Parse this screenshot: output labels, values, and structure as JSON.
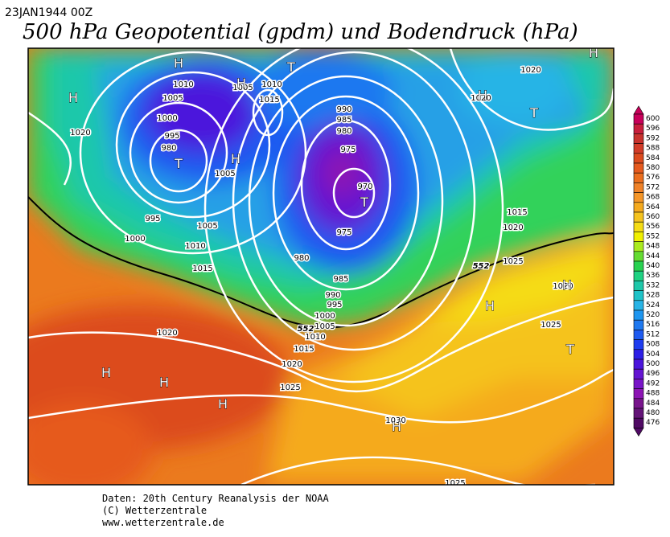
{
  "header": {
    "date": "23JAN1944 00Z",
    "title": "500 hPa Geopotential (gpdm) und Bodendruck (hPa)"
  },
  "map": {
    "contour_labels": [
      "1010",
      "1005",
      "1010",
      "1015",
      "1005",
      "1000",
      "995",
      "980",
      "1020",
      "1005",
      "995",
      "1005",
      "1000",
      "1010",
      "1015",
      "990",
      "985",
      "980",
      "975",
      "970",
      "975",
      "980",
      "985",
      "990",
      "995",
      "1000",
      "1005",
      "1010",
      "1015",
      "1020",
      "1025",
      "1020",
      "1015",
      "1020",
      "1025",
      "1020",
      "1020",
      "1025",
      "1030",
      "1025",
      "1020"
    ],
    "pressure_systems": [
      "H",
      "H",
      "T",
      "H",
      "T",
      "H",
      "T",
      "H",
      "H",
      "T",
      "H",
      "H",
      "T",
      "H",
      "H",
      "H",
      "H"
    ],
    "boundary_labels": [
      "552",
      "552"
    ]
  },
  "legend": {
    "levels": [
      600,
      596,
      592,
      588,
      584,
      580,
      576,
      572,
      568,
      564,
      560,
      556,
      552,
      548,
      544,
      540,
      536,
      532,
      528,
      524,
      520,
      516,
      512,
      508,
      504,
      500,
      496,
      492,
      488,
      484,
      480,
      476
    ],
    "colors": [
      "#c8005a",
      "#c81e3c",
      "#c8322d",
      "#d23c28",
      "#dc4b1e",
      "#e65a1e",
      "#eb6e1e",
      "#f08228",
      "#f59628",
      "#f5aa1e",
      "#f5c31e",
      "#f5dc14",
      "#f0f000",
      "#aaeb1e",
      "#64dc32",
      "#28d250",
      "#1ed282",
      "#1ec8aa",
      "#1ec3c8",
      "#28b4e6",
      "#1e96f0",
      "#1e78f0",
      "#1e5af0",
      "#1e3cf0",
      "#2d1ee6",
      "#4b14dc",
      "#6414d2",
      "#7814c8",
      "#8c14b4",
      "#78148c",
      "#641478",
      "#500a64"
    ]
  },
  "footer": {
    "lines": [
      "Daten: 20th Century Reanalysis der NOAA",
      "(C) Wetterzentrale",
      "www.wetterzentrale.de"
    ]
  }
}
